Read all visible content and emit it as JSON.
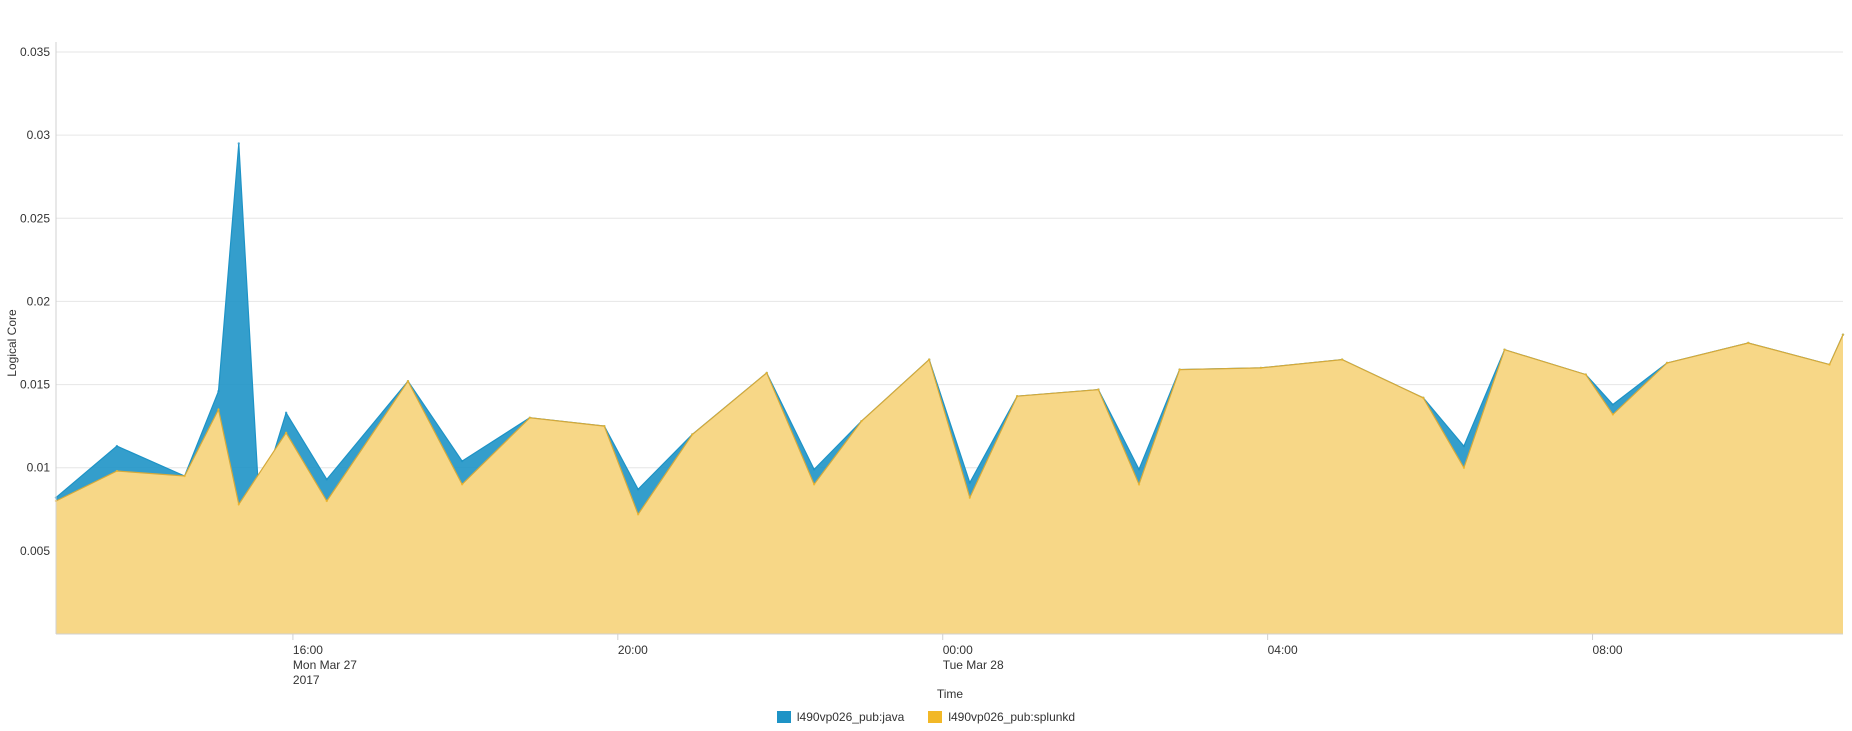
{
  "chart_data": {
    "type": "area",
    "stacked": true,
    "title": "",
    "xlabel": "Time",
    "ylabel": "Logical Core",
    "ylim": [
      0,
      0.035
    ],
    "yticks": [
      0.005,
      0.01,
      0.015,
      0.02,
      0.025,
      0.03,
      0.035
    ],
    "ytick_labels": [
      "0.005",
      "0.01",
      "0.015",
      "0.02",
      "0.025",
      "0.03",
      "0.035"
    ],
    "xrange": [
      "2017-03-27T13:05",
      "2017-03-28T11:05"
    ],
    "xticks": [
      {
        "time": "2017-03-27T16:00",
        "lines": [
          "16:00",
          "Mon Mar 27",
          "2017"
        ]
      },
      {
        "time": "2017-03-27T20:00",
        "lines": [
          "20:00"
        ]
      },
      {
        "time": "2017-03-28T00:00",
        "lines": [
          "00:00",
          "Tue Mar 28"
        ]
      },
      {
        "time": "2017-03-28T04:00",
        "lines": [
          "04:00"
        ]
      },
      {
        "time": "2017-03-28T08:00",
        "lines": [
          "08:00"
        ]
      }
    ],
    "grid": true,
    "legend_position": "bottom",
    "series": [
      {
        "name": "l490vp026_pub:java",
        "color": "#1e93c6",
        "points": [
          [
            "2017-03-27T13:05",
            0.0082
          ],
          [
            "2017-03-27T13:50",
            0.0113
          ],
          [
            "2017-03-27T14:40",
            0.0095
          ],
          [
            "2017-03-27T15:05",
            0.0146
          ],
          [
            "2017-03-27T15:20",
            0.0295
          ],
          [
            "2017-03-27T15:35",
            0.008
          ],
          [
            "2017-03-27T15:55",
            0.0133
          ],
          [
            "2017-03-27T16:25",
            0.0093
          ],
          [
            "2017-03-27T17:25",
            0.0152
          ],
          [
            "2017-03-27T18:05",
            0.0104
          ],
          [
            "2017-03-27T18:55",
            0.013
          ],
          [
            "2017-03-27T19:50",
            0.0125
          ],
          [
            "2017-03-27T20:15",
            0.0087
          ],
          [
            "2017-03-27T20:55",
            0.012
          ],
          [
            "2017-03-27T21:50",
            0.0157
          ],
          [
            "2017-03-27T22:25",
            0.0099
          ],
          [
            "2017-03-27T23:00",
            0.0128
          ],
          [
            "2017-03-27T23:50",
            0.0165
          ],
          [
            "2017-03-28T00:20",
            0.0091
          ],
          [
            "2017-03-28T00:55",
            0.0143
          ],
          [
            "2017-03-28T01:55",
            0.0147
          ],
          [
            "2017-03-28T02:25",
            0.0099
          ],
          [
            "2017-03-28T02:55",
            0.0159
          ],
          [
            "2017-03-28T03:55",
            0.016
          ],
          [
            "2017-03-28T04:55",
            0.0165
          ],
          [
            "2017-03-28T05:55",
            0.0142
          ],
          [
            "2017-03-28T06:25",
            0.0113
          ],
          [
            "2017-03-28T06:55",
            0.0171
          ],
          [
            "2017-03-28T07:55",
            0.0156
          ],
          [
            "2017-03-28T08:15",
            0.0138
          ],
          [
            "2017-03-28T08:55",
            0.0163
          ],
          [
            "2017-03-28T09:55",
            0.0175
          ],
          [
            "2017-03-28T10:55",
            0.0162
          ],
          [
            "2017-03-28T11:05",
            0.018
          ]
        ]
      },
      {
        "name": "l490vp026_pub:splunkd",
        "color": "#f2b827",
        "fill": "#f7d787",
        "points": [
          [
            "2017-03-27T13:05",
            0.008
          ],
          [
            "2017-03-27T13:50",
            0.0098
          ],
          [
            "2017-03-27T14:40",
            0.0095
          ],
          [
            "2017-03-27T15:05",
            0.0135
          ],
          [
            "2017-03-27T15:20",
            0.0078
          ],
          [
            "2017-03-27T15:55",
            0.0121
          ],
          [
            "2017-03-27T16:25",
            0.008
          ],
          [
            "2017-03-27T17:25",
            0.0152
          ],
          [
            "2017-03-27T18:05",
            0.009
          ],
          [
            "2017-03-27T18:55",
            0.013
          ],
          [
            "2017-03-27T19:50",
            0.0125
          ],
          [
            "2017-03-27T20:15",
            0.0072
          ],
          [
            "2017-03-27T20:55",
            0.012
          ],
          [
            "2017-03-27T21:50",
            0.0157
          ],
          [
            "2017-03-27T22:25",
            0.009
          ],
          [
            "2017-03-27T23:00",
            0.0128
          ],
          [
            "2017-03-27T23:50",
            0.0165
          ],
          [
            "2017-03-28T00:20",
            0.0082
          ],
          [
            "2017-03-28T00:55",
            0.0143
          ],
          [
            "2017-03-28T01:55",
            0.0147
          ],
          [
            "2017-03-28T02:25",
            0.009
          ],
          [
            "2017-03-28T02:55",
            0.0159
          ],
          [
            "2017-03-28T03:55",
            0.016
          ],
          [
            "2017-03-28T04:55",
            0.0165
          ],
          [
            "2017-03-28T05:55",
            0.0142
          ],
          [
            "2017-03-28T06:25",
            0.01
          ],
          [
            "2017-03-28T06:55",
            0.0171
          ],
          [
            "2017-03-28T07:55",
            0.0156
          ],
          [
            "2017-03-28T08:15",
            0.0132
          ],
          [
            "2017-03-28T08:55",
            0.0163
          ],
          [
            "2017-03-28T09:55",
            0.0175
          ],
          [
            "2017-03-28T10:55",
            0.0162
          ],
          [
            "2017-03-28T11:05",
            0.018
          ]
        ]
      }
    ]
  }
}
